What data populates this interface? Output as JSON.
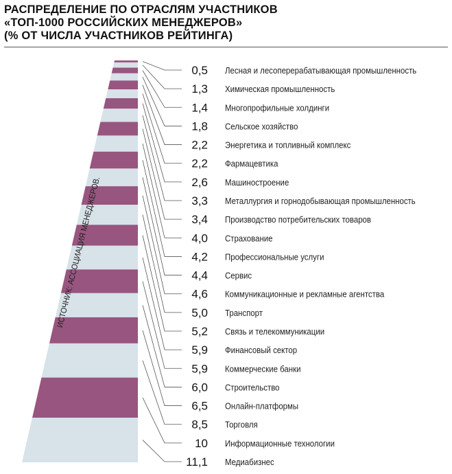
{
  "chart_data": {
    "type": "bar",
    "title_lines": [
      "РАСПРЕДЕЛЕНИЕ ПО ОТРАСЛЯМ УЧАСТНИКОВ",
      "«ТОП-1000 РОССИЙСКИХ МЕНЕДЖЕРОВ»",
      "(% ОТ ЧИСЛА УЧАСТНИКОВ РЕЙТИНГА)"
    ],
    "source": "ИСТОЧНИК: АССОЦИАЦИЯ МЕНЕДЖЕРОВ.",
    "unit": "%",
    "colors": {
      "band_a": "#98557f",
      "band_b": "#d7e2e9",
      "line": "#555555"
    },
    "categories": [
      "Лесная и лесоперерабатывающая промышленность",
      "Химическая промышленность",
      "Многопрофильные холдинги",
      "Сельское хозяйство",
      "Энергетика и топливный комплекс",
      "Фармацевтика",
      "Машиностроение",
      "Металлургия и горнодобывающая промышленность",
      "Производство потребительских товаров",
      "Страхование",
      "Профессиональные услуги",
      "Сервис",
      "Коммуникационные и рекламные агентства",
      "Транспорт",
      "Связь и телекоммуникации",
      "Финансовый сектор",
      "Коммерческие банки",
      "Строительство",
      "Онлайн-платформы",
      "Торговля",
      "Информационные технологии",
      "Медиабизнес"
    ],
    "values": [
      0.5,
      1.3,
      1.4,
      1.8,
      2.2,
      2.2,
      2.6,
      3.3,
      3.4,
      4.0,
      4.2,
      4.4,
      4.6,
      5.0,
      5.2,
      5.9,
      5.9,
      6.0,
      6.5,
      8.5,
      10,
      11.1
    ],
    "value_labels": [
      "0,5",
      "1,3",
      "1,4",
      "1,8",
      "2,2",
      "2,2",
      "2,6",
      "3,3",
      "3,4",
      "4,0",
      "4,2",
      "4,4",
      "4,6",
      "5,0",
      "5,2",
      "5,9",
      "5,9",
      "6,0",
      "6,5",
      "8,5",
      "10",
      "11,1"
    ]
  }
}
